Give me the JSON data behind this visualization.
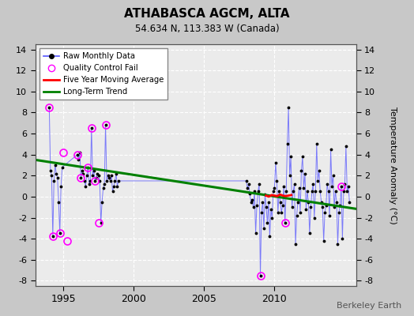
{
  "title": "ATHABASCA AGCM, ALTA",
  "subtitle": "54.634 N, 113.383 W (Canada)",
  "ylabel": "Temperature Anomaly (°C)",
  "attribution": "Berkeley Earth",
  "xlim": [
    1993.0,
    2015.8
  ],
  "ylim": [
    -8.5,
    14.5
  ],
  "yticks": [
    -8,
    -6,
    -4,
    -2,
    0,
    2,
    4,
    6,
    8,
    10,
    12,
    14
  ],
  "xticks": [
    1995,
    2000,
    2005,
    2010
  ],
  "plot_bg_color": "#ebebeb",
  "fig_bg_color": "#c8c8c8",
  "trend_x": [
    1993.0,
    2016.0
  ],
  "trend_y": [
    3.5,
    -1.2
  ],
  "raw_x": [
    1994.0,
    1994.083,
    1994.167,
    1994.25,
    1994.333,
    1994.417,
    1994.5,
    1994.583,
    1994.667,
    1994.75,
    1994.833,
    1994.917,
    1996.0,
    1996.083,
    1996.167,
    1996.25,
    1996.333,
    1996.417,
    1996.5,
    1996.583,
    1996.667,
    1996.75,
    1996.833,
    1996.917,
    1997.0,
    1997.083,
    1997.167,
    1997.25,
    1997.333,
    1997.417,
    1997.5,
    1997.583,
    1997.667,
    1997.75,
    1997.833,
    1997.917,
    1998.0,
    1998.083,
    1998.167,
    1998.25,
    1998.333,
    1998.417,
    1998.5,
    1998.583,
    1998.667,
    1998.75,
    1998.833,
    1998.917,
    2008.0,
    2008.083,
    2008.167,
    2008.25,
    2008.333,
    2008.417,
    2008.5,
    2008.583,
    2008.667,
    2008.75,
    2008.833,
    2008.917,
    2009.0,
    2009.083,
    2009.167,
    2009.25,
    2009.333,
    2009.417,
    2009.5,
    2009.583,
    2009.667,
    2009.75,
    2009.833,
    2009.917,
    2010.0,
    2010.083,
    2010.167,
    2010.25,
    2010.333,
    2010.417,
    2010.5,
    2010.583,
    2010.667,
    2010.75,
    2010.833,
    2010.917,
    2011.0,
    2011.083,
    2011.167,
    2011.25,
    2011.333,
    2011.417,
    2011.5,
    2011.583,
    2011.667,
    2011.75,
    2011.833,
    2011.917,
    2012.0,
    2012.083,
    2012.167,
    2012.25,
    2012.333,
    2012.417,
    2012.5,
    2012.583,
    2012.667,
    2012.75,
    2012.833,
    2012.917,
    2013.0,
    2013.083,
    2013.167,
    2013.25,
    2013.333,
    2013.417,
    2013.5,
    2013.583,
    2013.667,
    2013.75,
    2013.833,
    2013.917,
    2014.0,
    2014.083,
    2014.167,
    2014.25,
    2014.333,
    2014.417,
    2014.5,
    2014.583,
    2014.667,
    2014.75,
    2014.833,
    2014.917,
    2015.0,
    2015.083,
    2015.167,
    2015.25,
    2015.333
  ],
  "raw_y": [
    8.5,
    2.5,
    2.0,
    -3.8,
    1.5,
    3.0,
    2.2,
    1.8,
    -0.5,
    -3.5,
    1.0,
    2.8,
    4.0,
    3.5,
    4.2,
    1.8,
    2.5,
    2.2,
    1.5,
    1.0,
    2.0,
    2.8,
    1.2,
    1.5,
    6.5,
    2.0,
    2.5,
    1.5,
    1.8,
    2.2,
    2.0,
    1.5,
    -2.5,
    -0.5,
    0.8,
    1.2,
    6.8,
    1.5,
    2.0,
    1.8,
    1.5,
    2.0,
    0.5,
    1.0,
    1.5,
    2.2,
    1.0,
    1.5,
    1.5,
    0.8,
    1.2,
    0.3,
    -0.5,
    -0.3,
    -1.0,
    0.5,
    -3.5,
    -0.8,
    0.5,
    1.2,
    -7.5,
    -1.5,
    -0.5,
    -3.0,
    0.2,
    -1.0,
    -2.5,
    -0.5,
    -3.8,
    -1.2,
    -2.0,
    0.5,
    0.8,
    3.2,
    1.5,
    -1.5,
    0.5,
    -0.5,
    -1.5,
    -0.8,
    1.0,
    -2.5,
    0.5,
    5.0,
    8.5,
    2.0,
    3.8,
    -1.0,
    0.5,
    1.2,
    -4.5,
    -1.8,
    -0.5,
    0.8,
    -1.5,
    2.5,
    3.8,
    0.8,
    2.2,
    -1.2,
    0.5,
    -0.5,
    -3.5,
    -1.0,
    0.5,
    1.2,
    -2.0,
    0.5,
    5.0,
    1.5,
    2.5,
    0.5,
    -0.5,
    -1.0,
    -4.2,
    -1.5,
    -0.8,
    1.2,
    0.5,
    -1.8,
    4.5,
    1.0,
    2.0,
    -1.0,
    0.5,
    -0.5,
    -4.5,
    -1.5,
    -0.8,
    1.0,
    -4.0,
    0.5,
    1.2,
    4.8,
    0.5,
    1.0,
    -0.5
  ],
  "qc_fail_x": [
    1994.0,
    1994.25,
    1994.75,
    1995.0,
    1995.25,
    1996.0,
    1996.25,
    1996.75,
    1997.0,
    1997.25,
    1997.5,
    1998.0,
    2009.0,
    2010.75,
    2014.75
  ],
  "qc_fail_y": [
    8.5,
    -3.8,
    -3.5,
    4.2,
    -4.2,
    4.0,
    1.8,
    2.8,
    6.5,
    1.5,
    -2.5,
    6.8,
    -7.5,
    -2.5,
    1.0
  ],
  "moving_avg_x": [
    2009.4,
    2009.6,
    2009.8,
    2010.0,
    2010.2,
    2010.4,
    2010.6,
    2010.8,
    2011.0,
    2011.2
  ],
  "moving_avg_y": [
    0.1,
    0.0,
    0.15,
    0.1,
    0.05,
    0.2,
    0.1,
    0.05,
    0.1,
    0.15
  ]
}
